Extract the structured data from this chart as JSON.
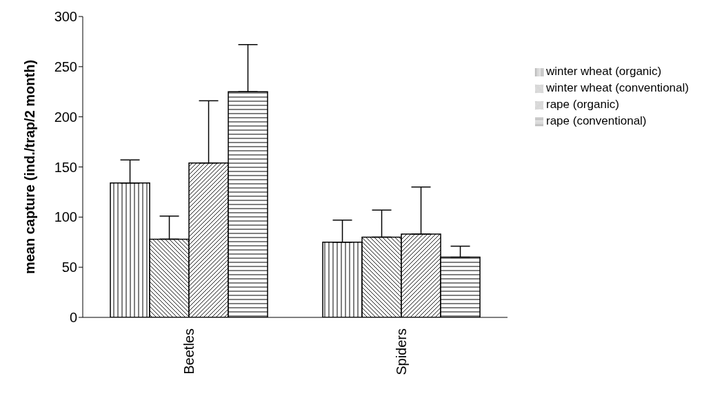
{
  "chart_data": {
    "type": "bar",
    "ylabel": "mean capture (ind./trap/2 month)",
    "categories": [
      "Beetles",
      "Spiders"
    ],
    "ylim": [
      0,
      300
    ],
    "yticks": [
      0,
      50,
      100,
      150,
      200,
      250,
      300
    ],
    "grid": false,
    "legend": "right",
    "series": [
      {
        "name": "winter wheat (organic)",
        "color": "#000000",
        "values": [
          134,
          75
        ],
        "errors": [
          [
            134,
            157
          ],
          [
            75,
            97
          ]
        ]
      },
      {
        "name": "winter wheat (conventional)",
        "color": "#000000",
        "values": [
          78,
          80
        ],
        "errors": [
          [
            78,
            101
          ],
          [
            80,
            107
          ]
        ]
      },
      {
        "name": "rape (organic)",
        "color": "#000000",
        "values": [
          154,
          83
        ],
        "errors": [
          [
            154,
            216
          ],
          [
            83,
            130
          ]
        ]
      },
      {
        "name": "rape (conventional)",
        "color": "#000000",
        "values": [
          225,
          60
        ],
        "errors": [
          [
            225,
            272
          ],
          [
            60,
            71
          ]
        ]
      }
    ]
  }
}
